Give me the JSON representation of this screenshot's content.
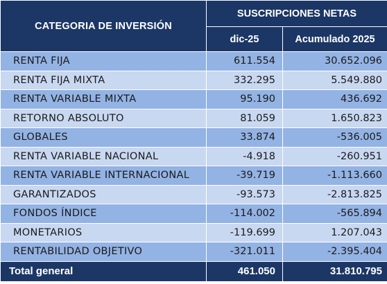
{
  "header": {
    "category_label": "CATEGORIA DE INVERSIÓN",
    "group_label": "SUSCRIPCIONES NETAS",
    "col_month": "dic-25",
    "col_accum": "Acumulado 2025"
  },
  "rows": [
    {
      "category": "RENTA FIJA",
      "month": "611.554",
      "accum": "30.652.096"
    },
    {
      "category": "RENTA FIJA MIXTA",
      "month": "332.295",
      "accum": "5.549.880"
    },
    {
      "category": "RENTA VARIABLE MIXTA",
      "month": "95.190",
      "accum": "436.692"
    },
    {
      "category": "RETORNO ABSOLUTO",
      "month": "81.059",
      "accum": "1.650.823"
    },
    {
      "category": "GLOBALES",
      "month": "33.874",
      "accum": "-536.005"
    },
    {
      "category": "RENTA VARIABLE NACIONAL",
      "month": "-4.918",
      "accum": "-260.951"
    },
    {
      "category": "RENTA VARIABLE INTERNACIONAL",
      "month": "-39.719",
      "accum": "-1.113.660"
    },
    {
      "category": "GARANTIZADOS",
      "month": "-93.573",
      "accum": "-2.813.825"
    },
    {
      "category": "FONDOS ÍNDICE",
      "month": "-114.002",
      "accum": "-565.894"
    },
    {
      "category": "MONETARIOS",
      "month": "-119.699",
      "accum": "1.207.043"
    },
    {
      "category": "RENTABILIDAD OBJETIVO",
      "month": "-321.011",
      "accum": "-2.395.404"
    }
  ],
  "total": {
    "label": "Total general",
    "month": "461.050",
    "accum": "31.810.795"
  },
  "colors": {
    "header_bg": "#1c3766",
    "row_dark": "#93b3e4",
    "row_light": "#c9d8f1"
  }
}
